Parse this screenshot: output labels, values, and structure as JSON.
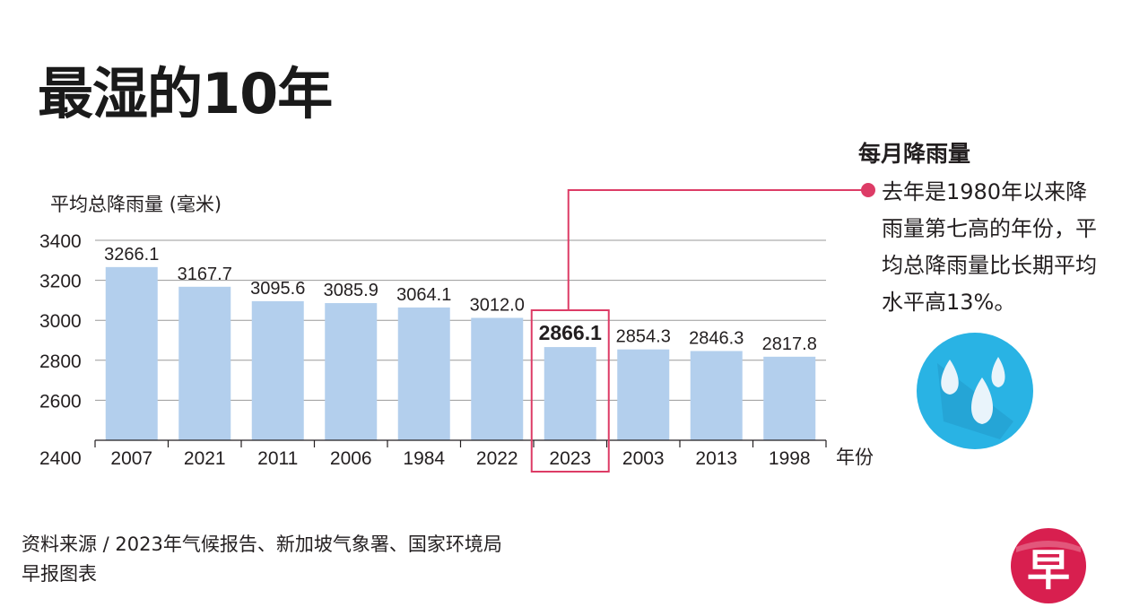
{
  "title": "最湿的10年",
  "ylabel": "平均总降雨量 (毫米)",
  "xunit": "年份",
  "side": {
    "title": "每月降雨量",
    "text": "去年是1980年以来降雨量第七高的年份，平均总降雨量比长期平均水平高13%。"
  },
  "footer": {
    "source": "资料来源 / 2023年气候报告、新加坡气象署、国家环境局",
    "credit": "早报图表"
  },
  "logo": {
    "text": "早",
    "icon": "zaobao-logo-icon"
  },
  "rain_icon": "raindrops-icon",
  "colors": {
    "bar": "#b3cfed",
    "highlight": "#dd3c66",
    "grid": "#9a9a9a",
    "icon_bg": "#29b3e4",
    "logo": "#d81f4f"
  },
  "chart_data": {
    "type": "bar",
    "categories": [
      "2007",
      "2021",
      "2011",
      "2006",
      "1984",
      "2022",
      "2023",
      "2003",
      "2013",
      "1998"
    ],
    "values": [
      3266.1,
      3167.7,
      3095.6,
      3085.9,
      3064.1,
      3012.0,
      2866.1,
      2854.3,
      2846.3,
      2817.8
    ],
    "value_labels": [
      "3266.1",
      "3167.7",
      "3095.6",
      "3085.9",
      "3064.1",
      "3012.0",
      "2866.1",
      "2854.3",
      "2846.3",
      "2817.8"
    ],
    "highlight": "2023",
    "ylim": [
      2400,
      3400
    ],
    "yticks": [
      2400,
      2600,
      2800,
      3000,
      3200,
      3400
    ],
    "ylabel": "平均总降雨量 (毫米)",
    "xlabel": "年份",
    "grid": true
  }
}
